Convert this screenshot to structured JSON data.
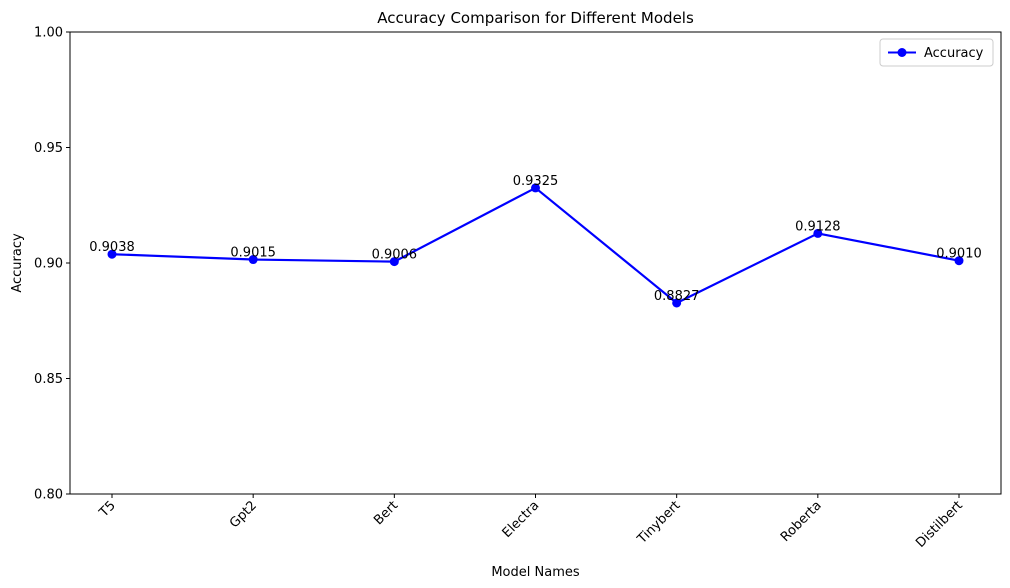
{
  "chart_data": {
    "type": "line",
    "title": "Accuracy Comparison for Different Models",
    "xlabel": "Model Names",
    "ylabel": "Accuracy",
    "categories": [
      "T5",
      "Gpt2",
      "Bert",
      "Electra",
      "Tinybert",
      "Roberta",
      "Distilbert"
    ],
    "series": [
      {
        "name": "Accuracy",
        "values": [
          0.9038,
          0.9015,
          0.9006,
          0.9325,
          0.8827,
          0.9128,
          0.901
        ],
        "labels": [
          "0.9038",
          "0.9015",
          "0.9006",
          "0.9325",
          "0.8827",
          "0.9128",
          "0.9010"
        ],
        "color": "#0000ff",
        "marker": "circle"
      }
    ],
    "ylim": [
      0.8,
      1.0
    ],
    "yticks": [
      0.8,
      0.85,
      0.9,
      0.95,
      1.0
    ],
    "ytick_labels": [
      "0.80",
      "0.85",
      "0.90",
      "0.95",
      "1.00"
    ],
    "grid": false,
    "legend_position": "top-right"
  }
}
